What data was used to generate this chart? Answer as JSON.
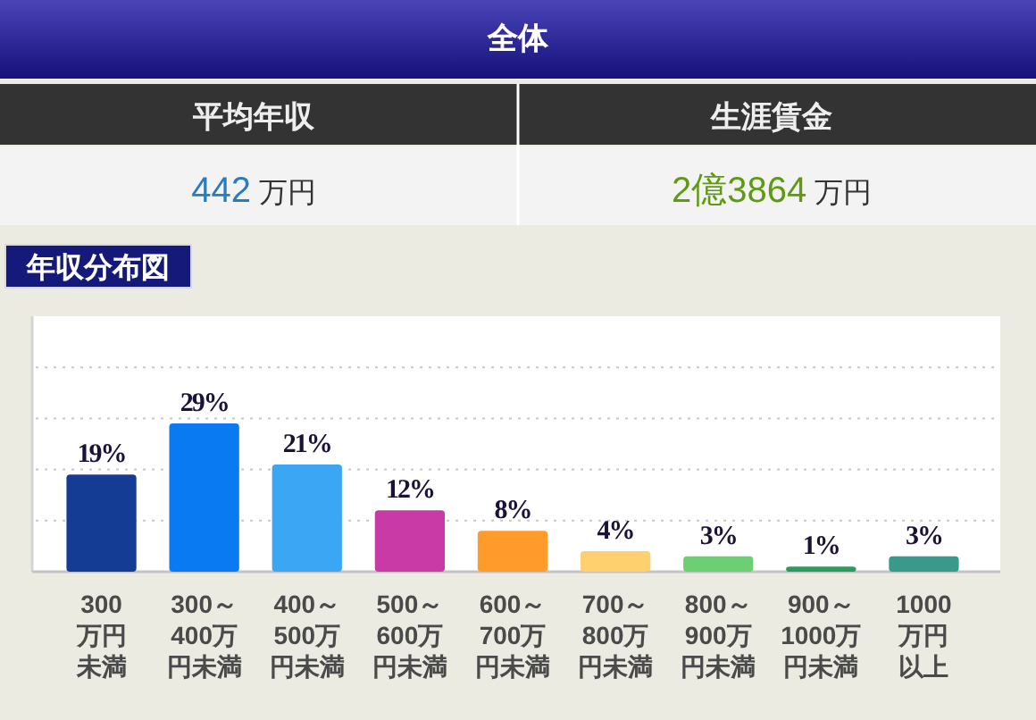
{
  "chart_data": [
    {
      "type": "other",
      "title": "全体",
      "annotations": [
        "平均年収",
        "442 万円",
        "生涯賃金",
        "2億3864 万円"
      ]
    },
    {
      "type": "bar",
      "title": "年収分布図",
      "categories": [
        "300万円未満",
        "300～400万円未満",
        "400～500万円未満",
        "500～600万円未満",
        "600～700万円未満",
        "700～800万円未満",
        "800～900万円未満",
        "900～1000万円未満",
        "1000万円以上"
      ],
      "values": [
        19,
        29,
        21,
        12,
        8,
        4,
        3,
        1,
        3
      ],
      "colors": [
        "#143c94",
        "#0a7af2",
        "#3aa6f4",
        "#c93aa6",
        "#ff9b2b",
        "#ffd06e",
        "#6ccf74",
        "#2f9a5e",
        "#389a8a"
      ],
      "value_labels": [
        "19%",
        "29%",
        "21%",
        "12%",
        "8%",
        "4%",
        "3%",
        "1%",
        "3%"
      ],
      "ylim": [
        0,
        50
      ],
      "yticks": [
        {
          "value": 10,
          "label": null
        },
        {
          "value": 20,
          "label": null
        },
        {
          "value": 30,
          "label": null
        },
        {
          "value": 40,
          "label": null
        }
      ],
      "grid": "y",
      "tick_labels": "x"
    }
  ]
}
